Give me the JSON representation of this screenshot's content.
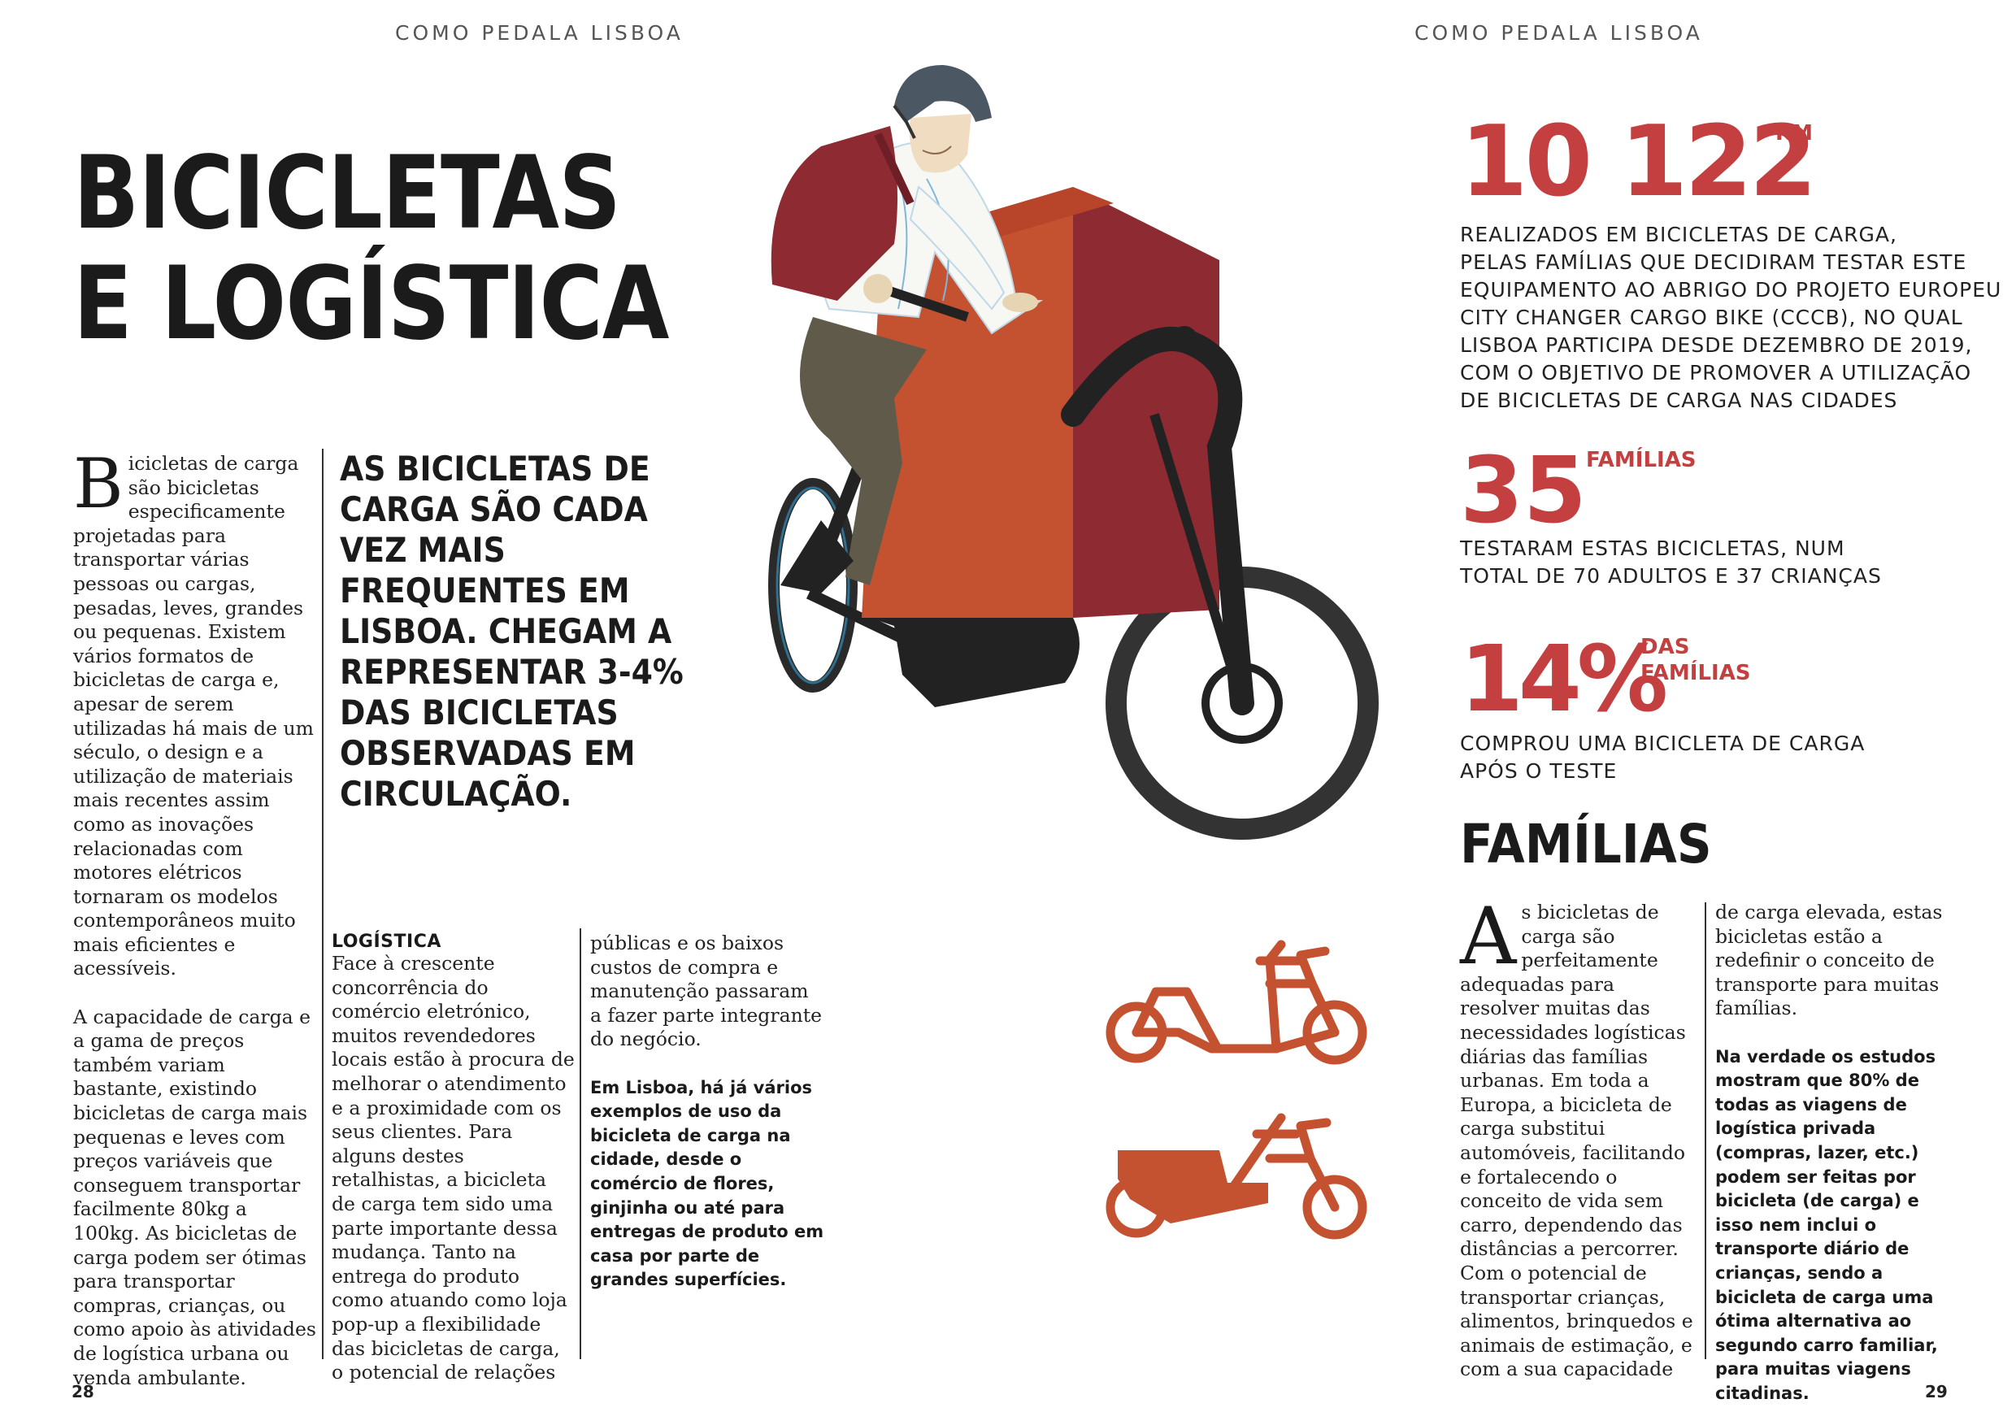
{
  "running_header": {
    "left": "COMO PEDALA LISBOA",
    "right": "COMO PEDALA LISBOA"
  },
  "title": {
    "line1": "BICICLETAS",
    "line2": "E LOGÍSTICA"
  },
  "intro": {
    "dropcap": "B",
    "para1": "icicletas de carga são bicicletas especificamente projetadas para transportar várias pessoas ou cargas, pesadas, leves, grandes ou pequenas. Existem vários formatos de bicicletas de carga e, apesar de serem utilizadas há mais de um século, o design e a utilização de materiais mais recentes assim como as inovações relacionadas com motores elétricos tornaram os modelos contemporâneos muito mais eficientes e acessíveis.",
    "para2": "A capacidade de carga e a gama de preços também variam bastante, existindo bicicletas de carga mais pequenas e leves com preços variáveis que conseguem transportar facilmente 80kg a 100kg. As bicicletas de carga podem ser ótimas para transportar compras, crianças, ou como apoio às atividades de logística urbana ou venda ambulante."
  },
  "pull_quote": "AS BICICLETAS DE CARGA SÃO CADA VEZ MAIS FREQUENTES EM LISBOA. CHEGAM A REPRESENTAR 3-4% DAS BICICLETAS OBSERVADAS EM CIRCULAÇÃO.",
  "logistica": {
    "heading": "LOGÍSTICA",
    "col1": "Face à crescente concorrência do comércio eletrónico, muitos revendedores locais estão à procura de melhorar o atendimento e a proximidade com os seus clientes. Para alguns destes retalhistas, a bicicleta de carga tem sido uma parte importante dessa mudança. Tanto na entrega do produto como atuando como loja pop-up a flexibilidade das bicicletas de carga, o potencial de relações",
    "col2": "públicas e os baixos custos de compra e manutenção passaram a fazer parte integrante do negócio.",
    "col2_bold": "Em Lisboa, há já vários exemplos de uso da bicicleta de carga na cidade, desde o comércio de flores, ginjinha ou até para entregas de produto em casa por parte de grandes superfícies."
  },
  "stats": [
    {
      "number": "10 122",
      "unit": "KM",
      "desc": [
        "REALIZADOS EM BICICLETAS DE CARGA,",
        "PELAS FAMÍLIAS QUE DECIDIRAM TESTAR ESTE",
        "EQUIPAMENTO AO ABRIGO DO PROJETO EUROPEU",
        "CITY CHANGER CARGO BIKE (CCCB), NO QUAL",
        "LISBOA PARTICIPA DESDE DEZEMBRO DE 2019,",
        "COM O OBJETIVO DE PROMOVER A UTILIZAÇÃO",
        "DE BICICLETAS DE CARGA NAS CIDADES"
      ]
    },
    {
      "number": "35",
      "unit": "FAMÍLIAS",
      "desc": [
        "TESTARAM ESTAS BICICLETAS, NUM",
        "TOTAL DE 70 ADULTOS E 37 CRIANÇAS"
      ]
    },
    {
      "number": "14%",
      "unit": "DAS FAMÍLIAS",
      "unit_line1": "DAS",
      "unit_line2": "FAMÍLIAS",
      "desc": [
        "COMPROU UMA BICICLETA DE CARGA",
        "APÓS O TESTE"
      ]
    }
  ],
  "familias": {
    "heading": "FAMÍLIAS",
    "dropcap": "A",
    "col1": "s bicicletas de carga são perfeitamente adequadas para resolver muitas das necessidades logísticas diárias das famílias urbanas. Em toda a Europa, a bicicleta de carga substitui automóveis, facilitando e fortalecendo o conceito de vida sem carro, dependendo das distâncias a percorrer. Com o potencial de transportar crianças, alimentos, brinquedos e animais de estimação, e com a sua capacidade",
    "col2": "de carga elevada, estas bicicletas estão a redefinir o conceito de transporte para muitas famílias.",
    "col2_bold": "Na verdade os estudos mostram que 80% de todas as viagens de logística privada (compras, lazer, etc.) podem ser feitas por bicicleta (de carga) e isso nem inclui o transporte diário de crianças, sendo a bicicleta de carga uma ótima alternativa ao segundo carro familiar, para muitas viagens citadinas."
  },
  "page_numbers": {
    "left": "28",
    "right": "29"
  },
  "colors": {
    "accent_red": "#c44040",
    "box_orange": "#c4512f",
    "box_dark_red": "#8e2a32",
    "icon_orange": "#c4512f"
  },
  "icons": [
    "cyclist-cargo-bike-illustration",
    "cargo-bike-outline-icon",
    "cargo-bike-box-icon"
  ]
}
